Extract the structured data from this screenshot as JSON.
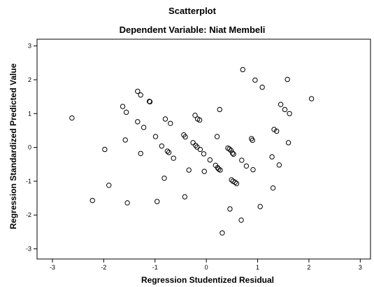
{
  "chart_data": {
    "type": "scatter",
    "title": "Scatterplot",
    "subtitle": "Dependent Variable: Niat Membeli",
    "xlabel": "Regression Studentized Residual",
    "ylabel": "Regression Standardized Predicted Value",
    "xlim": [
      -3.3,
      3.2
    ],
    "ylim": [
      -3.3,
      3.2
    ],
    "xticks": [
      -3,
      -2,
      -1,
      0,
      1,
      2,
      3
    ],
    "yticks": [
      -3,
      -2,
      -1,
      0,
      1,
      2,
      3
    ],
    "tick_labels_x": [
      "-3",
      "-2",
      "-1",
      "0",
      "1",
      "2",
      "3"
    ],
    "tick_labels_y": [
      "-3",
      "-2",
      "-1",
      "0",
      "1",
      "2",
      "3"
    ],
    "grid": false,
    "marker": "open-circle",
    "colors": {
      "marker": "#000000",
      "plot_bg": "#ffffff",
      "frame": "#000000"
    },
    "points": [
      [
        -2.62,
        0.87
      ],
      [
        -2.22,
        -1.57
      ],
      [
        -1.98,
        -0.06
      ],
      [
        -1.9,
        -1.12
      ],
      [
        -1.63,
        1.21
      ],
      [
        -1.56,
        1.04
      ],
      [
        -1.58,
        0.22
      ],
      [
        -1.54,
        -1.64
      ],
      [
        -1.34,
        1.66
      ],
      [
        -1.28,
        1.55
      ],
      [
        -1.34,
        0.76
      ],
      [
        -1.28,
        -0.18
      ],
      [
        -1.22,
        0.59
      ],
      [
        -1.11,
        1.36
      ],
      [
        -1.1,
        1.35
      ],
      [
        -0.99,
        0.32
      ],
      [
        -0.96,
        -1.6
      ],
      [
        -0.87,
        0.04
      ],
      [
        -0.8,
        0.84
      ],
      [
        -0.82,
        -0.91
      ],
      [
        -0.76,
        -0.11
      ],
      [
        -0.73,
        -0.15
      ],
      [
        -0.7,
        0.71
      ],
      [
        -0.64,
        -0.32
      ],
      [
        -0.44,
        0.37
      ],
      [
        -0.41,
        0.31
      ],
      [
        -0.42,
        -1.46
      ],
      [
        -0.34,
        -0.67
      ],
      [
        -0.26,
        0.14
      ],
      [
        -0.22,
        0.95
      ],
      [
        -0.21,
        0.06
      ],
      [
        -0.18,
        0.01
      ],
      [
        -0.17,
        0.84
      ],
      [
        -0.13,
        0.81
      ],
      [
        -0.12,
        -0.06
      ],
      [
        -0.05,
        -0.19
      ],
      [
        -0.04,
        -0.71
      ],
      [
        0.07,
        -0.37
      ],
      [
        0.18,
        -0.53
      ],
      [
        0.21,
        0.32
      ],
      [
        0.22,
        -0.6
      ],
      [
        0.24,
        -0.64
      ],
      [
        0.26,
        1.12
      ],
      [
        0.27,
        -0.67
      ],
      [
        0.31,
        -2.53
      ],
      [
        0.42,
        -0.02
      ],
      [
        0.45,
        -0.05
      ],
      [
        0.46,
        -1.82
      ],
      [
        0.48,
        -0.09
      ],
      [
        0.49,
        -0.96
      ],
      [
        0.51,
        -0.17
      ],
      [
        0.52,
        -1.0
      ],
      [
        0.53,
        -0.2
      ],
      [
        0.56,
        -1.03
      ],
      [
        0.59,
        -1.07
      ],
      [
        0.68,
        -2.15
      ],
      [
        0.69,
        -0.38
      ],
      [
        0.71,
        2.3
      ],
      [
        0.78,
        -0.55
      ],
      [
        0.88,
        0.26
      ],
      [
        0.9,
        0.21
      ],
      [
        0.91,
        -0.66
      ],
      [
        0.95,
        1.99
      ],
      [
        1.05,
        -1.75
      ],
      [
        1.09,
        1.78
      ],
      [
        1.28,
        -0.28
      ],
      [
        1.3,
        -1.2
      ],
      [
        1.32,
        0.53
      ],
      [
        1.37,
        0.48
      ],
      [
        1.42,
        -0.52
      ],
      [
        1.45,
        1.27
      ],
      [
        1.53,
        1.12
      ],
      [
        1.58,
        2.01
      ],
      [
        1.6,
        0.14
      ],
      [
        1.62,
        1.0
      ],
      [
        2.05,
        1.44
      ]
    ]
  }
}
